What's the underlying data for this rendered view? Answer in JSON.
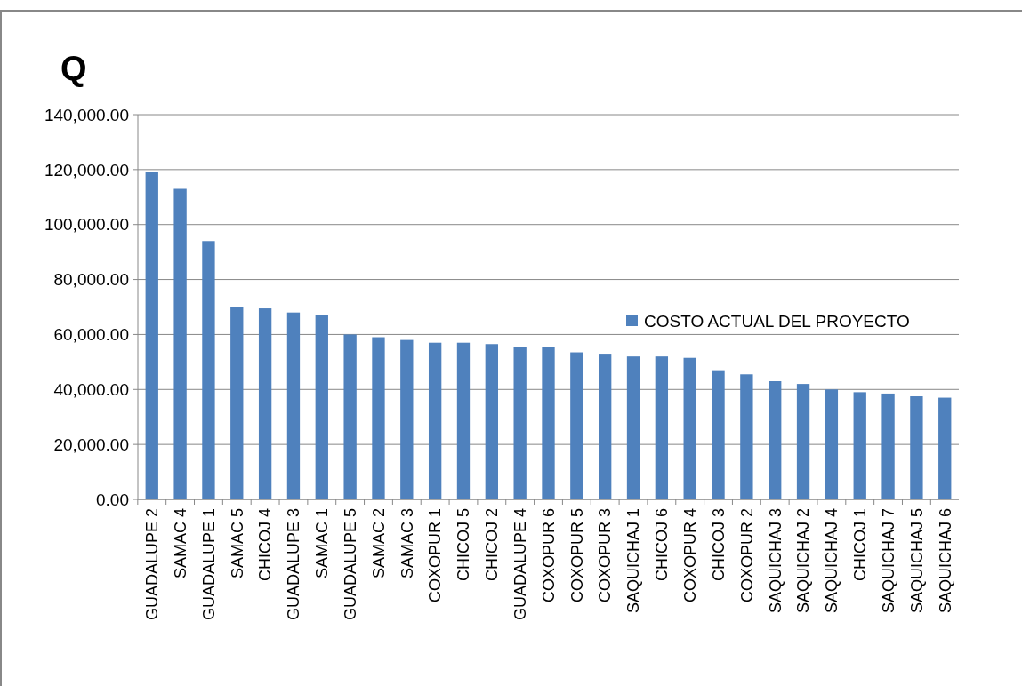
{
  "chart_data": {
    "type": "bar",
    "title": "Q",
    "categories": [
      "GUADALUPE 2",
      "SAMAC 4",
      "GUADALUPE 1",
      "SAMAC 5",
      "CHICOJ 4",
      "GUADALUPE 3",
      "SAMAC 1",
      "GUADALUPE 5",
      "SAMAC 2",
      "SAMAC 3",
      "COXOPUR 1",
      "CHICOJ 5",
      "CHICOJ 2",
      "GUADALUPE 4",
      "COXOPUR 6",
      "COXOPUR 5",
      "COXOPUR 3",
      "SAQUICHAJ 1",
      "CHICOJ 6",
      "COXOPUR 4",
      "CHICOJ 3",
      "COXOPUR 2",
      "SAQUICHAJ 3",
      "SAQUICHAJ 2",
      "SAQUICHAJ 4",
      "CHICOJ 1",
      "SAQUICHAJ 7",
      "SAQUICHAJ 5",
      "SAQUICHAJ 6"
    ],
    "series": [
      {
        "name": "COSTO  ACTUAL DEL PROYECTO",
        "color": "#4f81bd",
        "values": [
          119000,
          113000,
          94000,
          70000,
          69500,
          68000,
          67000,
          60000,
          59000,
          58000,
          57000,
          57000,
          56500,
          55500,
          55500,
          53500,
          53000,
          52000,
          52000,
          51500,
          47000,
          45500,
          43000,
          42000,
          40000,
          39000,
          38500,
          37500,
          37000
        ]
      }
    ],
    "ylim": [
      0,
      140000
    ],
    "yticks": [
      {
        "value": 0,
        "label": "0.00"
      },
      {
        "value": 20000,
        "label": "20,000.00"
      },
      {
        "value": 40000,
        "label": "40,000.00"
      },
      {
        "value": 60000,
        "label": "60,000.00"
      },
      {
        "value": 80000,
        "label": "80,000.00"
      },
      {
        "value": 100000,
        "label": "100,000.00"
      },
      {
        "value": 120000,
        "label": "120,000.00"
      },
      {
        "value": 140000,
        "label": "140,000.00"
      }
    ],
    "grid": "y",
    "legend": "right"
  }
}
